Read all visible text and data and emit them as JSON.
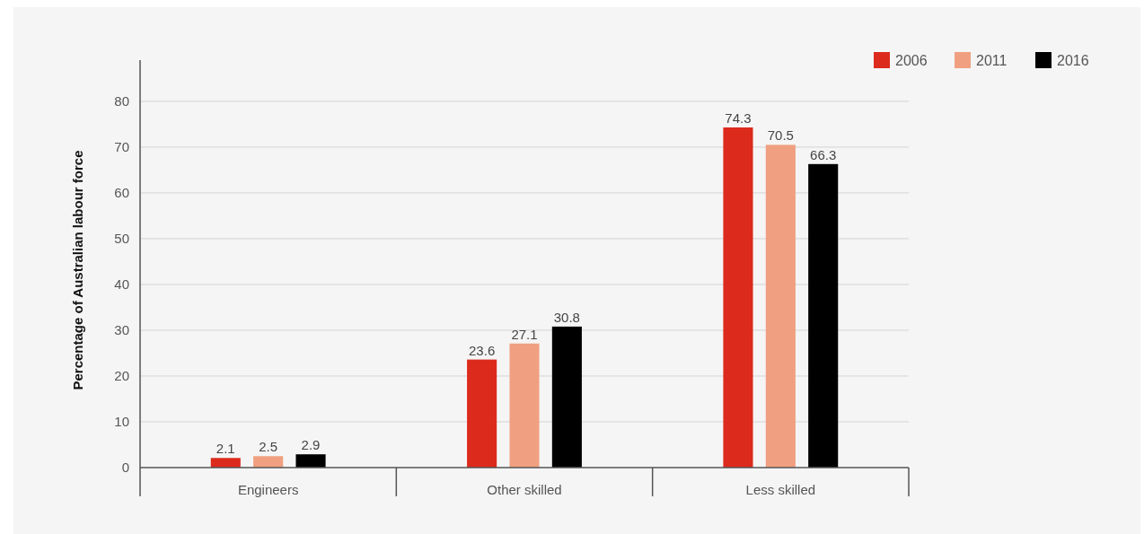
{
  "chart_data": {
    "type": "bar",
    "categories": [
      "Engineers",
      "Other skilled",
      "Less skilled"
    ],
    "series": [
      {
        "name": "2006",
        "color": "#dc2a1c",
        "values": [
          2.1,
          23.6,
          74.3
        ]
      },
      {
        "name": "2011",
        "color": "#f0a080",
        "values": [
          2.5,
          27.1,
          70.5
        ]
      },
      {
        "name": "2016",
        "color": "#000000",
        "values": [
          2.9,
          30.8,
          66.3
        ]
      }
    ],
    "ylabel": "Percentage of Australian labour force",
    "ylim": [
      0,
      89
    ],
    "yticks": [
      0,
      10,
      20,
      30,
      40,
      50,
      60,
      70,
      80
    ],
    "grid": "y",
    "legend": "top right",
    "data_labels": true
  }
}
